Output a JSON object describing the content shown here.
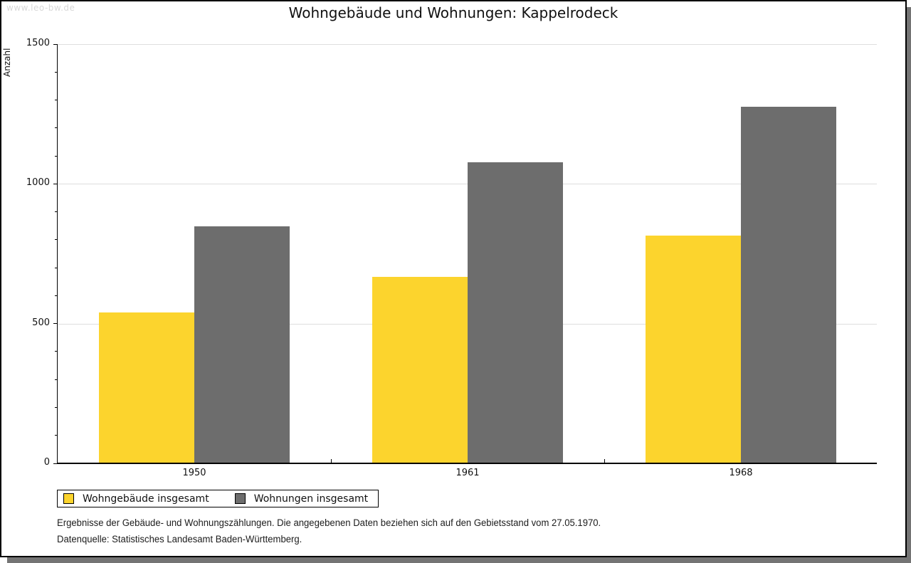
{
  "page": {
    "watermark": "www.leo-bw.de"
  },
  "chart_data": {
    "type": "bar",
    "title": "Wohngebäude und Wohnungen: Kappelrodeck",
    "xlabel": "",
    "ylabel": "Anzahl",
    "categories": [
      "1950",
      "1961",
      "1968"
    ],
    "series": [
      {
        "name": "Wohngebäude insgesamt",
        "color": "#FCD42D",
        "values": [
          540,
          668,
          816
        ]
      },
      {
        "name": "Wohnungen insgesamt",
        "color": "#6D6D6D",
        "values": [
          848,
          1078,
          1277
        ]
      }
    ],
    "ylim": [
      0,
      1500
    ],
    "y_major_ticks": [
      0,
      500,
      1000,
      1500
    ],
    "y_minor_tick_step": 100,
    "grid": true,
    "legend_position": "bottom-left"
  },
  "footer": {
    "line1": "Ergebnisse der Gebäude- und Wohnungszählungen. Die angegebenen Daten beziehen sich auf den Gebietsstand vom 27.05.1970.",
    "line2": "Datenquelle: Statistisches Landesamt Baden-Württemberg."
  }
}
